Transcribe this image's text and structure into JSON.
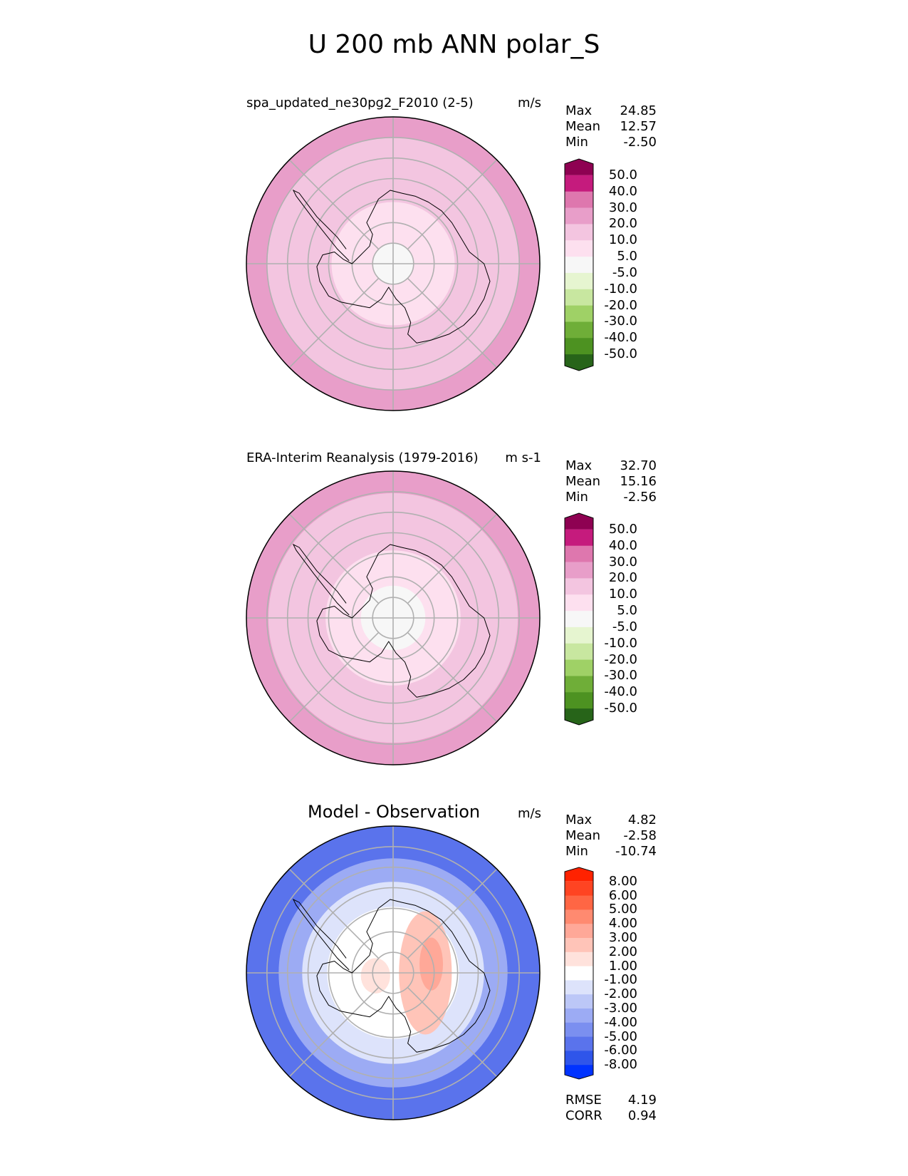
{
  "title": "U 200 mb ANN polar_S",
  "chart_data": [
    {
      "type": "heatmap",
      "projection": "south-polar-stereographic",
      "title": "spa_updated_ne30pg2_F2010 (2-5)",
      "units": "m/s",
      "stats": [
        {
          "label": "Max",
          "value": "24.85"
        },
        {
          "label": "Mean",
          "value": "12.57"
        },
        {
          "label": "Min",
          "value": "-2.50"
        }
      ],
      "colorbar": {
        "ticks": [
          "50.0",
          "40.0",
          "30.0",
          "20.0",
          "10.0",
          "5.0",
          "-5.0",
          "-10.0",
          "-20.0",
          "-30.0",
          "-40.0",
          "-50.0"
        ],
        "colors": [
          "#8e0152",
          "#c51b7d",
          "#de77ae",
          "#e89ec9",
          "#f3c5e0",
          "#fde0ef",
          "#f7f7f7",
          "#e6f5d0",
          "#c8e7a0",
          "#9fd166",
          "#6fae38",
          "#4d9221",
          "#276419"
        ]
      },
      "field_bands": [
        {
          "r_end": 0.14,
          "value": 2
        },
        {
          "r_end": 0.42,
          "value": 7
        },
        {
          "r_end": 0.86,
          "value": 15
        },
        {
          "r_end": 1.0,
          "value": 22
        }
      ]
    },
    {
      "type": "heatmap",
      "projection": "south-polar-stereographic",
      "title": "ERA-Interim Reanalysis (1979-2016)",
      "units": "m s-1",
      "stats": [
        {
          "label": "Max",
          "value": "32.70"
        },
        {
          "label": "Mean",
          "value": "15.16"
        },
        {
          "label": "Min",
          "value": "-2.56"
        }
      ],
      "colorbar": {
        "ticks": [
          "50.0",
          "40.0",
          "30.0",
          "20.0",
          "10.0",
          "5.0",
          "-5.0",
          "-10.0",
          "-20.0",
          "-30.0",
          "-40.0",
          "-50.0"
        ],
        "colors": [
          "#8e0152",
          "#c51b7d",
          "#de77ae",
          "#e89ec9",
          "#f3c5e0",
          "#fde0ef",
          "#f7f7f7",
          "#e6f5d0",
          "#c8e7a0",
          "#9fd166",
          "#6fae38",
          "#4d9221",
          "#276419"
        ]
      },
      "field_bands": [
        {
          "r_end": 0.22,
          "value": 2
        },
        {
          "r_end": 0.46,
          "value": 7
        },
        {
          "r_end": 0.85,
          "value": 15
        },
        {
          "r_end": 1.0,
          "value": 25
        }
      ]
    },
    {
      "type": "heatmap",
      "projection": "south-polar-stereographic",
      "title": "Model - Observation",
      "units": "m/s",
      "stats": [
        {
          "label": "Max",
          "value": "4.82"
        },
        {
          "label": "Mean",
          "value": "-2.58"
        },
        {
          "label": "Min",
          "value": "-10.74"
        }
      ],
      "colorbar": {
        "ticks": [
          "8.00",
          "6.00",
          "5.00",
          "4.00",
          "3.00",
          "2.00",
          "1.00",
          "-1.00",
          "-2.00",
          "-3.00",
          "-4.00",
          "-5.00",
          "-6.00",
          "-8.00"
        ],
        "colors": [
          "#ff2200",
          "#ff4422",
          "#ff6644",
          "#ff8a70",
          "#ffa898",
          "#ffc4b8",
          "#ffe2dc",
          "#ffffff",
          "#dde3fb",
          "#bcc7f7",
          "#9cabf4",
          "#7b8ff0",
          "#5a73ec",
          "#2f55ea",
          "#0033ff"
        ]
      },
      "field_bands": [
        {
          "r_end": 0.25,
          "value": 0
        },
        {
          "r_end": 0.45,
          "value": 0.5
        },
        {
          "r_end": 0.62,
          "value": -1.5
        },
        {
          "r_end": 0.78,
          "value": -3.5
        },
        {
          "r_end": 1.0,
          "value": -5.5
        }
      ],
      "footer_stats": [
        {
          "label": "RMSE",
          "value": "4.19"
        },
        {
          "label": "CORR",
          "value": "0.94"
        }
      ]
    }
  ]
}
